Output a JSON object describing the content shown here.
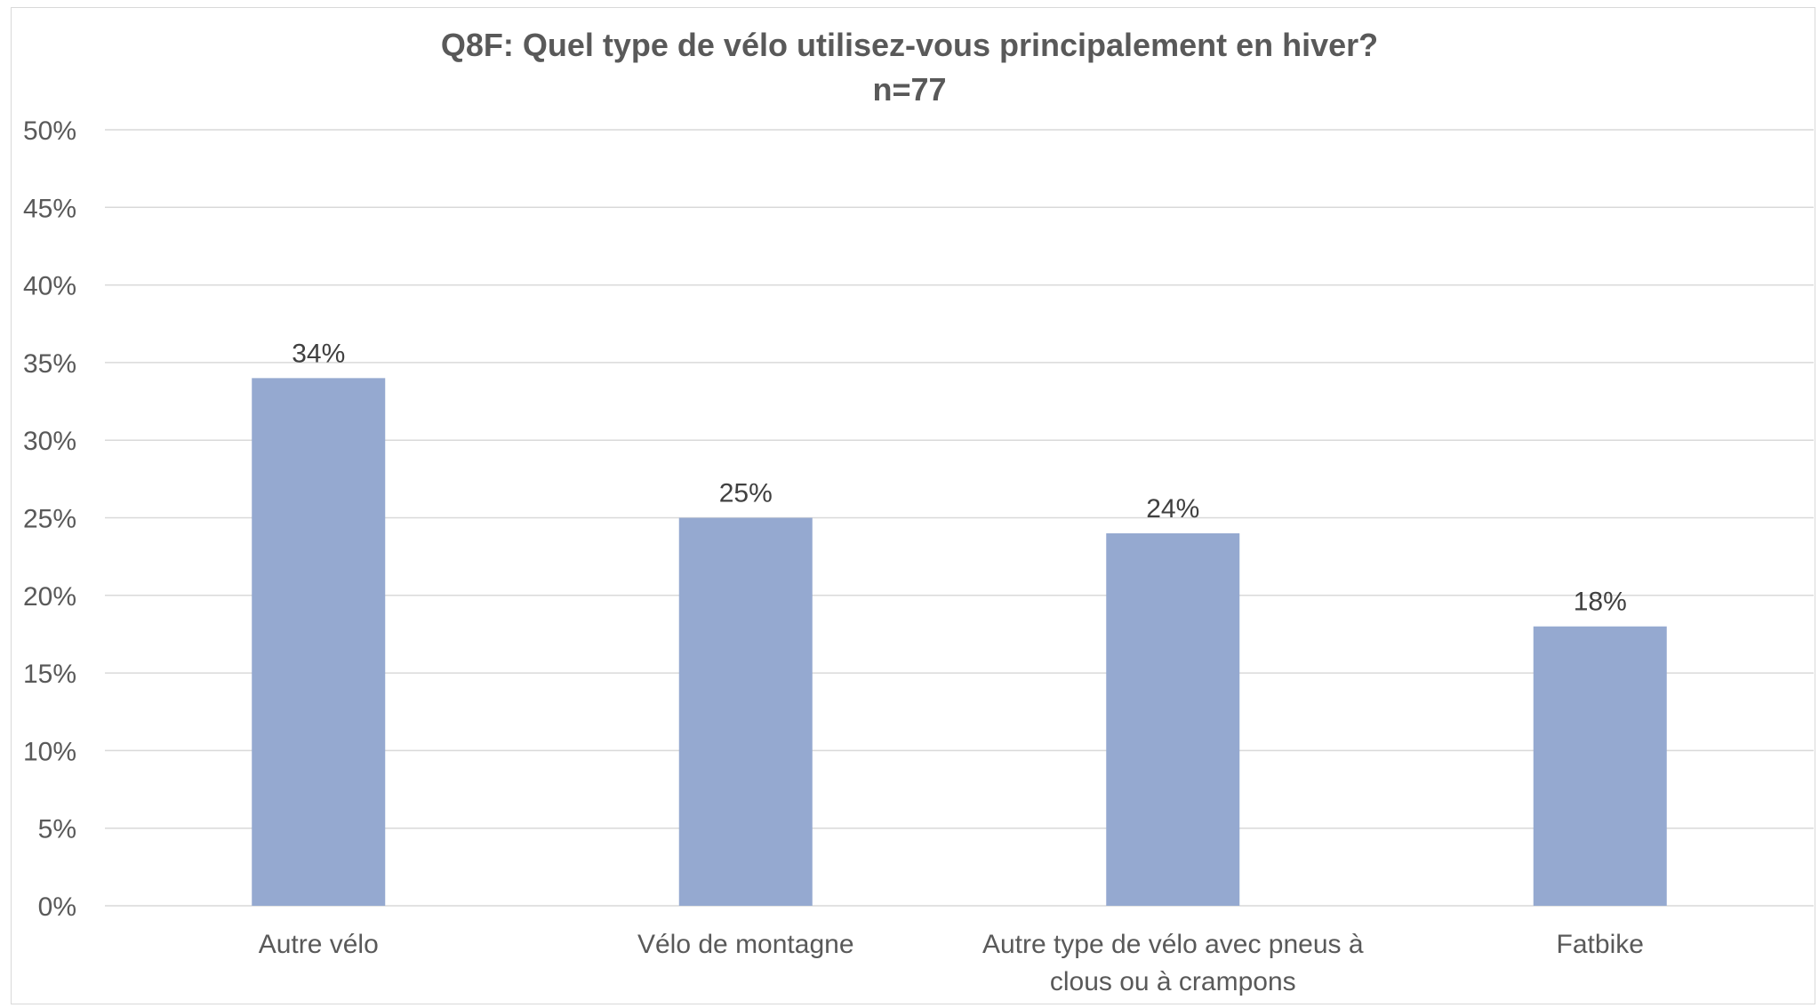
{
  "chart_data": {
    "type": "bar",
    "title": "Q8F: Quel type de vélo utilisez-vous principalement en hiver?",
    "subtitle": "n=77",
    "categories": [
      [
        "Autre vélo"
      ],
      [
        "Vélo de montagne"
      ],
      [
        "Autre type de vélo avec pneus à",
        "clous ou à crampons"
      ],
      [
        "Fatbike"
      ]
    ],
    "values": [
      34,
      25,
      24,
      18
    ],
    "value_units": "percent",
    "ylim": [
      0,
      50
    ],
    "yticks": [
      0,
      5,
      10,
      15,
      20,
      25,
      30,
      35,
      40,
      45,
      50
    ],
    "ytick_suffix": "%",
    "data_label_suffix": "%",
    "grid": true,
    "legend": "none",
    "colors": {
      "bar": "#95a9d0",
      "grid": "#d9d9d9",
      "axis_text": "#595959",
      "title": "#595959"
    }
  }
}
